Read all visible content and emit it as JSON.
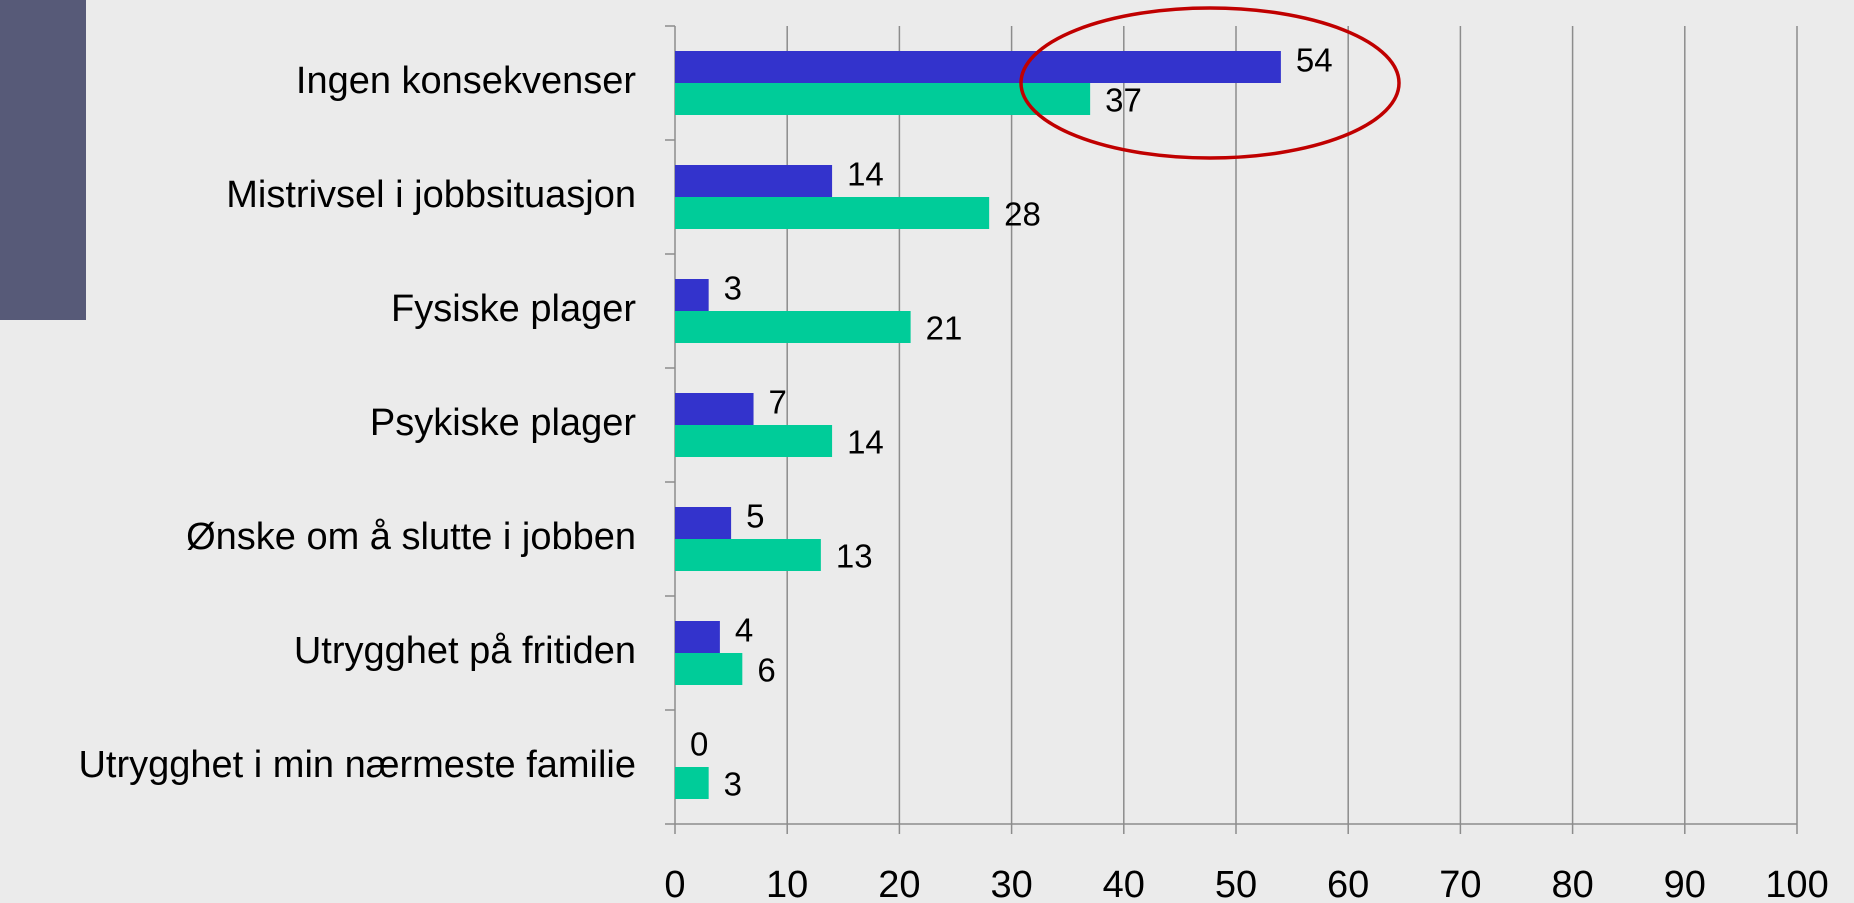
{
  "chart_data": {
    "type": "hbar",
    "categories": [
      "Ingen konsekvenser",
      "Mistrivsel i jobbsituasjon",
      "Fysiske plager",
      "Psykiske plager",
      "Ønske om å slutte i jobben",
      "Utrygghet på fritiden",
      "Utrygghet i min nærmeste familie"
    ],
    "series": [
      {
        "color": "#3333cc",
        "values": [
          54,
          14,
          3,
          7,
          5,
          4,
          0
        ]
      },
      {
        "color": "#00cc99",
        "values": [
          37,
          28,
          21,
          14,
          13,
          6,
          3
        ]
      }
    ],
    "xlim": [
      0,
      100
    ],
    "xticks": [
      0,
      10,
      20,
      30,
      40,
      50,
      60,
      70,
      80,
      90,
      100
    ],
    "grid": true
  }
}
